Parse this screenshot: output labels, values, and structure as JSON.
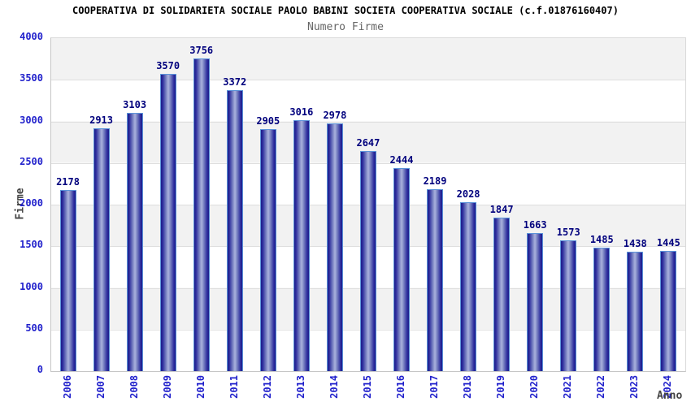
{
  "header": {
    "title": "COOPERATIVA DI SOLIDARIETA SOCIALE PAOLO BABINI SOCIETA COOPERATIVA SOCIALE (c.f.01876160407)",
    "subtitle": "Numero Firme"
  },
  "chart_data": {
    "type": "bar",
    "title": "COOPERATIVA DI SOLIDARIETA SOCIALE PAOLO BABINI SOCIETA COOPERATIVA SOCIALE (c.f.01876160407)",
    "subtitle": "Numero Firme",
    "xlabel": "Anno",
    "ylabel": "Firme",
    "categories": [
      "2006",
      "2007",
      "2008",
      "2009",
      "2010",
      "2011",
      "2012",
      "2013",
      "2014",
      "2015",
      "2016",
      "2017",
      "2018",
      "2019",
      "2020",
      "2021",
      "2022",
      "2023",
      "2024"
    ],
    "values": [
      2178,
      2913,
      3103,
      3570,
      3756,
      3372,
      2905,
      3016,
      2978,
      2647,
      2444,
      2189,
      2028,
      1847,
      1663,
      1573,
      1485,
      1438,
      1445
    ],
    "ylim": [
      0,
      4000
    ],
    "yticks": [
      0,
      500,
      1000,
      1500,
      2000,
      2500,
      3000,
      3500,
      4000
    ],
    "bar_value_labels_shown": true,
    "legend_position": "none",
    "grid": "horizontal-bands",
    "colors": {
      "bar_edge": "#5b93d9",
      "bar_dark": "#1c1c8a",
      "bar_light": "#aab2dd",
      "value_label": "#00007d",
      "axis_tick_label": "#2222cc",
      "axis_title": "#444444",
      "title": "#000000",
      "subtitle": "#666666",
      "band_gray": "#f2f2f2",
      "band_white": "#ffffff",
      "gridline": "#dedede"
    }
  }
}
